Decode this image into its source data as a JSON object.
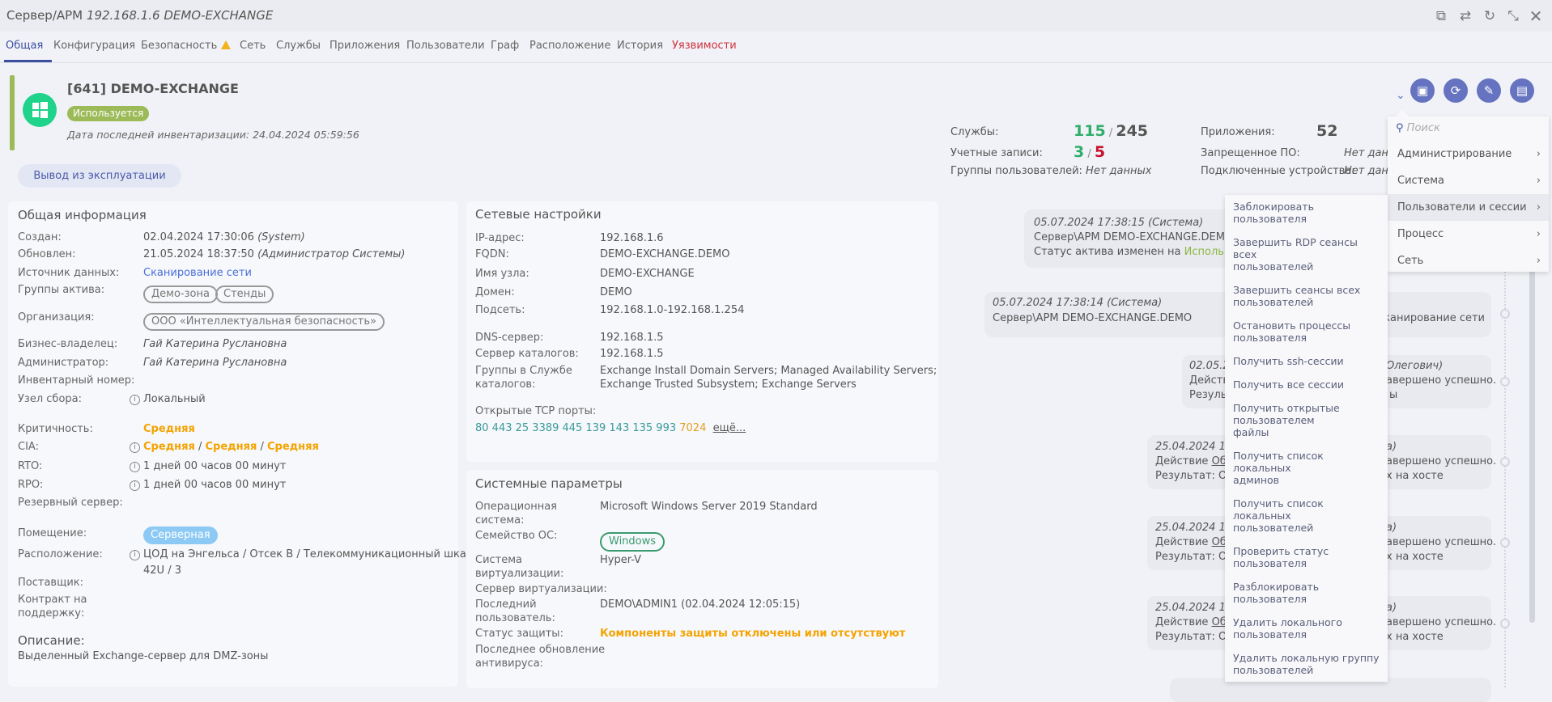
{
  "window": {
    "title_prefix": "Сервер/АРМ",
    "title_italic": "192.168.1.6 DEMO-EXCHANGE",
    "controls": [
      "copy-icon",
      "swap-icon",
      "refresh-icon",
      "minimize-icon",
      "close-icon"
    ]
  },
  "tabs": [
    {
      "label": "Общая",
      "active": true
    },
    {
      "label": "Конфигурация"
    },
    {
      "label": "Безопасность",
      "warning": true
    },
    {
      "label": "Сеть"
    },
    {
      "label": "Службы"
    },
    {
      "label": "Приложения"
    },
    {
      "label": "Пользователи"
    },
    {
      "label": "Граф"
    },
    {
      "label": "Расположение"
    },
    {
      "label": "История"
    },
    {
      "label": "Уязвимости",
      "color": "#d0303c"
    }
  ],
  "asset": {
    "name": "[641] DEMO-EXCHANGE",
    "status": "Используется",
    "inventory_date": "Дата последней инвентаризации: 24.04.2024 05:59:56",
    "decommission_button": "Вывод из эксплуатации",
    "os_icon": "windows-icon"
  },
  "stats": {
    "services_label": "Службы:",
    "services_active": "115",
    "services_total": "245",
    "accounts_label": "Учетные записи:",
    "accounts_a": "3",
    "accounts_b": "5",
    "groups_label": "Группы пользователей:",
    "groups_value": "Нет данных",
    "apps_label": "Приложения:",
    "apps_value": "52",
    "forbidden_label": "Запрещенное ПО:",
    "forbidden_value": "Нет данных",
    "devices_label": "Подключенные устройства:",
    "devices_value": "Нет данных",
    "sep": "/"
  },
  "actions": [
    "remote-desktop-icon",
    "sync-icon",
    "edit-icon",
    "document-icon"
  ],
  "general": {
    "title": "Общая информация",
    "created_label": "Создан:",
    "created": "02.04.2024 17:30:06",
    "created_by": "(System)",
    "updated_label": "Обновлен:",
    "updated": "21.05.2024 18:37:50",
    "updated_by": "(Администратор Системы)",
    "source_label": "Источник данных:",
    "source": "Сканирование сети",
    "groups_label": "Группы актива:",
    "groups": [
      "Демо-зона",
      "Стенды"
    ],
    "org_label": "Организация:",
    "org": "ООО «Интеллектуальная безопасность»",
    "owner_label": "Бизнес-владелец:",
    "owner": "Гай Катерина Руслановна",
    "admin_label": "Администратор:",
    "admin": "Гай Катерина Руслановна",
    "inv_label": "Инвентарный номер:",
    "node_label": "Узел сбора:",
    "node": "Локальный",
    "crit_label": "Критичность:",
    "crit": "Средняя",
    "cia_label": "CIA:",
    "cia": [
      "Средняя",
      "Средняя",
      "Средняя"
    ],
    "rto_label": "RTO:",
    "rto": "1 дней 00 часов 00 минут",
    "rpo_label": "RPO:",
    "rpo": "1 дней 00 часов 00 минут",
    "backup_label": "Резервный сервер:",
    "room_label": "Помещение:",
    "room": "Серверная",
    "location_label": "Расположение:",
    "location1": "ЦОД на Энгельса / Отсек В / Телекоммуникационный шкаф",
    "location2": "42U / 3",
    "vendor_label": "Поставщик:",
    "contract_label1": "Контракт на",
    "contract_label2": "поддержку:",
    "desc_label": "Описание:",
    "desc": "Выделенный Exchange-сервер для DMZ-зоны"
  },
  "network": {
    "title": "Сетевые настройки",
    "ip_label": "IP-адрес:",
    "ip": "192.168.1.6",
    "fqdn_label": "FQDN:",
    "fqdn": "DEMO-EXCHANGE.DEMO",
    "host_label": "Имя узла:",
    "host": "DEMO-EXCHANGE",
    "domain_label": "Домен:",
    "domain": "DEMO",
    "subnet_label": "Подсеть:",
    "subnet": "192.168.1.0-192.168.1.254",
    "dns_label": "DNS-сервер:",
    "dns": "192.168.1.5",
    "dir_label": "Сервер каталогов:",
    "dir": "192.168.1.5",
    "dirgroups_label1": "Группы в Службе",
    "dirgroups_label2": "каталогов:",
    "dirgroups1": "Exchange Install Domain Servers; Managed Availability Servers;",
    "dirgroups2": "Exchange Trusted Subsystem; Exchange Servers",
    "ports_label": "Открытые TCP порты:",
    "ports": "80 443 25 3389 445 139 143 135 993",
    "port_highlight": "7024",
    "more": "ещё..."
  },
  "system": {
    "title": "Системные параметры",
    "os_label1": "Операционная",
    "os_label2": "система:",
    "os": "Microsoft Windows Server 2019 Standard",
    "family_label": "Семейство ОС:",
    "family": "Windows",
    "virt_label1": "Система",
    "virt_label2": "виртуализации:",
    "virt": "Hyper-V",
    "vserver_label": "Сервер виртуализации:",
    "lastuser_label1": "Последний",
    "lastuser_label2": "пользователь:",
    "lastuser": "DEMO\\ADMIN1 (02.04.2024 12:05:15)",
    "protect_label": "Статус защиты:",
    "protect": "Компоненты защиты отключены или отсутствуют",
    "av_label1": "Последнее обновление",
    "av_label2": "антивируса:"
  },
  "timeline": [
    {
      "l1": "05.07.2024 17:38:15 (Система)",
      "l2": "Сервер\\АРМ DEMO-EXCHANGE.DEMO",
      "l3": "Статус актива изменен на ",
      "l3_status": "Используется"
    },
    {
      "l1": "05.07.2024 17:38:14 (Система)",
      "l2": "Сервер\\АРМ DEMO-EXCHANGE.DEMO",
      "r2": "Сканирование сети"
    },
    {
      "l1": "02.05.2",
      "r1": "Олегович)",
      "l2": "Действи",
      "r2": "авершено успешно.",
      "l3": "Результ",
      "r3": "ы"
    },
    {
      "l1": "25.04.2024 11",
      "r1": "а)",
      "l2": "Действие ",
      "l2u": "Обн",
      "r2": "авершено успешно.",
      "l3": "Результат: Об",
      "r3": "х на хосте"
    },
    {
      "l1": "25.04.2024 11",
      "r1": "а)",
      "l2": "Действие ",
      "l2u": "Обн",
      "r2": "авершено успешно.",
      "l3": "Результат: Об",
      "r3": "х на хосте"
    },
    {
      "l1": "25.04.2024 11",
      "r1": "а)",
      "l2": "Действие ",
      "l2u": "Обн",
      "r2": "авершено успешно.",
      "l3": "Результат: Об",
      "r3": "х на хосте"
    }
  ],
  "menu": {
    "search_placeholder": "Поиск",
    "items": [
      "Администрирование",
      "Система",
      "Пользователи и сессии",
      "Процесс",
      "Сеть"
    ],
    "highlighted": "Пользователи и сессии"
  },
  "submenu": [
    "Заблокировать пользователя",
    "Завершить RDP сеансы всех пользователей",
    "Завершить сеансы всех пользователей",
    "Остановить процессы пользователя",
    "Получить ssh-сессии",
    "Получить все сессии",
    "Получить открытые пользователем файлы",
    "Получить список локальных админов",
    "Получить список локальных пользователей",
    "Проверить статус пользователя",
    "Разблокировать пользователя",
    "Удалить локального пользователя",
    "Удалить локальную группу пользователей"
  ],
  "colors": {
    "accent": "#6573c0",
    "status_green": "#9cbb58",
    "windows": "#1fd38a",
    "orange": "#f4a300",
    "red": "#c8102e",
    "link": "#4a6fd8"
  }
}
